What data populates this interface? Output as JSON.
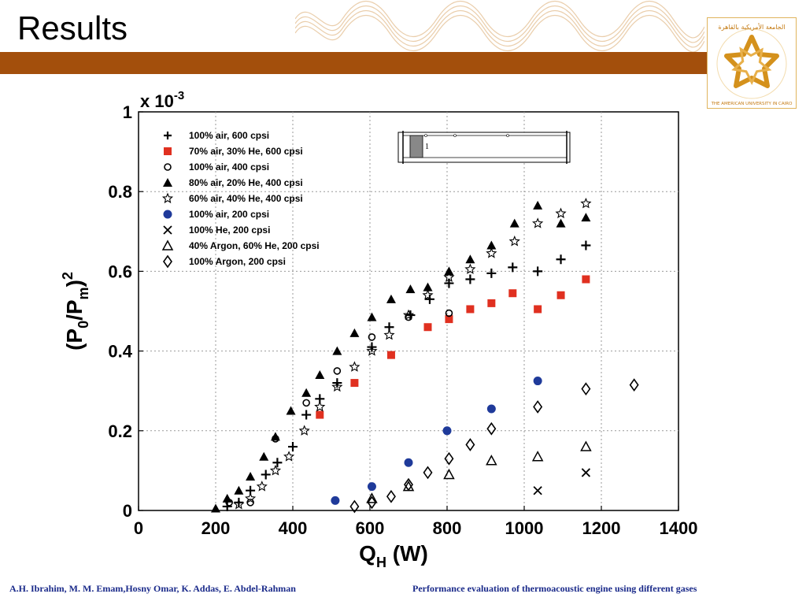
{
  "slide": {
    "title": "Results",
    "footer_left": "A.H. Ibrahim, M. M. Emam,Hosny Omar, K. Addas, E. Abdel-Rahman",
    "footer_right": "Performance evaluation of thermoacoustic engine using different gases",
    "logo_text_top": "الجامعة الأمريكية بالقاهرة",
    "logo_text_bottom": "THE AMERICAN UNIVERSITY IN CAIRO",
    "colors": {
      "band": "#a34f0c",
      "footer": "#1a2a8a",
      "logo": "#d4911c"
    }
  },
  "chart_data": {
    "type": "scatter",
    "xlabel": "Q_H (W)",
    "ylabel": "(P0/Pm)^2",
    "y_multiplier": "x 10^-3",
    "xlim": [
      0,
      1400
    ],
    "ylim": [
      0,
      1
    ],
    "xticks": [
      0,
      200,
      400,
      600,
      800,
      1000,
      1200,
      1400
    ],
    "yticks": [
      0,
      0.2,
      0.4,
      0.6,
      0.8,
      1
    ],
    "ytick_labels": [
      "0",
      "0.2",
      "0.4",
      "0.6",
      "0.8",
      "1"
    ],
    "grid": true,
    "legend_position": "top-left",
    "inset_label": "1",
    "series": [
      {
        "name": "100% air, 600 cpsi",
        "marker": "plus",
        "color": "#000000",
        "points": [
          [
            230,
            0.01
          ],
          [
            260,
            0.02
          ],
          [
            290,
            0.05
          ],
          [
            330,
            0.09
          ],
          [
            360,
            0.12
          ],
          [
            400,
            0.16
          ],
          [
            435,
            0.24
          ],
          [
            470,
            0.28
          ],
          [
            515,
            0.32
          ],
          [
            605,
            0.41
          ],
          [
            650,
            0.46
          ],
          [
            705,
            0.49
          ],
          [
            755,
            0.53
          ],
          [
            805,
            0.57
          ],
          [
            860,
            0.58
          ],
          [
            915,
            0.595
          ],
          [
            970,
            0.61
          ],
          [
            1035,
            0.6
          ],
          [
            1095,
            0.63
          ],
          [
            1160,
            0.665
          ]
        ]
      },
      {
        "name": "70% air, 30% He, 600 cpsi",
        "marker": "square",
        "color": "#e03020",
        "points": [
          [
            470,
            0.24
          ],
          [
            560,
            0.32
          ],
          [
            655,
            0.39
          ],
          [
            750,
            0.46
          ],
          [
            805,
            0.48
          ],
          [
            860,
            0.505
          ],
          [
            915,
            0.52
          ],
          [
            970,
            0.545
          ],
          [
            1035,
            0.505
          ],
          [
            1095,
            0.54
          ],
          [
            1160,
            0.58
          ]
        ]
      },
      {
        "name": "100% air, 400 cpsi",
        "marker": "circle-open",
        "color": "#000000",
        "points": [
          [
            235,
            0.02
          ],
          [
            290,
            0.02
          ],
          [
            355,
            0.18
          ],
          [
            435,
            0.27
          ],
          [
            515,
            0.35
          ],
          [
            605,
            0.435
          ],
          [
            700,
            0.485
          ],
          [
            805,
            0.495
          ]
        ]
      },
      {
        "name": "80% air, 20% He, 400 cpsi",
        "marker": "triangle-filled",
        "color": "#000000",
        "points": [
          [
            200,
            0.005
          ],
          [
            230,
            0.03
          ],
          [
            260,
            0.05
          ],
          [
            290,
            0.085
          ],
          [
            325,
            0.135
          ],
          [
            355,
            0.185
          ],
          [
            395,
            0.25
          ],
          [
            435,
            0.295
          ],
          [
            470,
            0.34
          ],
          [
            515,
            0.4
          ],
          [
            560,
            0.445
          ],
          [
            605,
            0.485
          ],
          [
            655,
            0.53
          ],
          [
            705,
            0.555
          ],
          [
            750,
            0.56
          ],
          [
            805,
            0.6
          ],
          [
            860,
            0.63
          ],
          [
            915,
            0.665
          ],
          [
            975,
            0.72
          ],
          [
            1035,
            0.765
          ],
          [
            1095,
            0.72
          ],
          [
            1160,
            0.735
          ]
        ]
      },
      {
        "name": "60% air, 40% He, 400 cpsi",
        "marker": "star-open",
        "color": "#000000",
        "points": [
          [
            260,
            0.015
          ],
          [
            290,
            0.03
          ],
          [
            320,
            0.06
          ],
          [
            355,
            0.1
          ],
          [
            390,
            0.135
          ],
          [
            430,
            0.2
          ],
          [
            470,
            0.26
          ],
          [
            515,
            0.31
          ],
          [
            560,
            0.36
          ],
          [
            605,
            0.4
          ],
          [
            650,
            0.44
          ],
          [
            700,
            0.49
          ],
          [
            750,
            0.54
          ],
          [
            805,
            0.585
          ],
          [
            860,
            0.605
          ],
          [
            915,
            0.645
          ],
          [
            975,
            0.675
          ],
          [
            1035,
            0.72
          ],
          [
            1095,
            0.745
          ],
          [
            1160,
            0.77
          ]
        ]
      },
      {
        "name": "100% air, 200 cpsi",
        "marker": "dot",
        "color": "#1f3a9a",
        "points": [
          [
            510,
            0.025
          ],
          [
            605,
            0.06
          ],
          [
            700,
            0.12
          ],
          [
            800,
            0.2
          ],
          [
            915,
            0.255
          ],
          [
            1035,
            0.325
          ]
        ]
      },
      {
        "name": "100% He, 200 cpsi",
        "marker": "x",
        "color": "#000000",
        "points": [
          [
            1035,
            0.05
          ],
          [
            1160,
            0.095
          ]
        ]
      },
      {
        "name": "40% Argon, 60% He, 200 cpsi",
        "marker": "triangle-open",
        "color": "#000000",
        "points": [
          [
            605,
            0.03
          ],
          [
            700,
            0.06
          ],
          [
            805,
            0.09
          ],
          [
            915,
            0.125
          ],
          [
            1035,
            0.135
          ],
          [
            1160,
            0.16
          ]
        ]
      },
      {
        "name": "100% Argon, 200 cpsi",
        "marker": "diamond-open",
        "color": "#000000",
        "points": [
          [
            560,
            0.01
          ],
          [
            605,
            0.02
          ],
          [
            655,
            0.035
          ],
          [
            700,
            0.065
          ],
          [
            750,
            0.095
          ],
          [
            805,
            0.13
          ],
          [
            860,
            0.165
          ],
          [
            915,
            0.205
          ],
          [
            1035,
            0.26
          ],
          [
            1160,
            0.305
          ],
          [
            1285,
            0.315
          ]
        ]
      }
    ]
  }
}
